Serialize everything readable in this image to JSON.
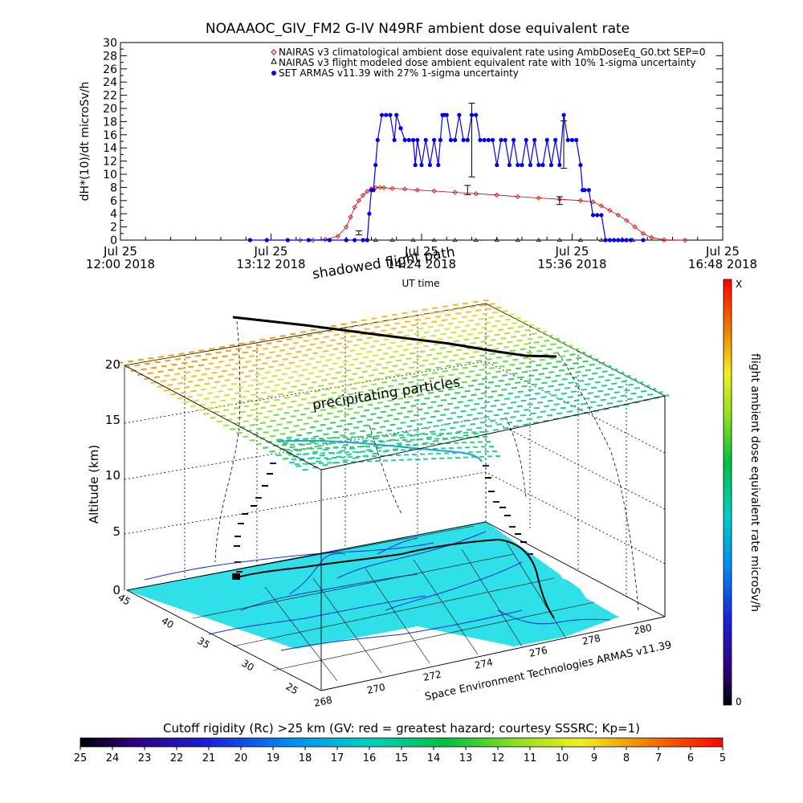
{
  "chart_data": [
    {
      "type": "line",
      "title": "NOAAAOC_GIV_FM2 G-IV    N49RF   ambient dose equivalent rate",
      "xlabel": "UT time",
      "ylabel": "dH*(10)/dt microSv/h",
      "ylim": [
        0,
        30
      ],
      "yticks": [
        "0",
        "2",
        "4",
        "6",
        "8",
        "10",
        "12",
        "14",
        "16",
        "18",
        "20",
        "22",
        "24",
        "26",
        "28",
        "30"
      ],
      "xlim_minutes": [
        720,
        1008
      ],
      "xticks": [
        {
          "line1": "Jul 25",
          "line2": "12:00 2018",
          "minute": 720
        },
        {
          "line1": "Jul 25",
          "line2": "13:12 2018",
          "minute": 792
        },
        {
          "line1": "Jul 25",
          "line2": "14:24 2018",
          "minute": 864
        },
        {
          "line1": "Jul 25",
          "line2": "15:36 2018",
          "minute": 936
        },
        {
          "line1": "Jul 25",
          "line2": "16:48 2018",
          "minute": 1008
        }
      ],
      "legend_placement": "top-right",
      "series": [
        {
          "name": "NAIRAS v3 climatological ambient dose equivalent rate using AmbDoseEq_G0.txt SEP=0",
          "color": "#cc0000",
          "marker": "diamond",
          "x": [
            806,
            812,
            818,
            824,
            828,
            830,
            832,
            834,
            836,
            838,
            840,
            842,
            844,
            846,
            850,
            856,
            862,
            870,
            880,
            890,
            900,
            910,
            920,
            930,
            940,
            946,
            950,
            954,
            958,
            962,
            966,
            970,
            974,
            980,
            990
          ],
          "y": [
            0,
            0,
            0.1,
            0.6,
            2.0,
            3.5,
            5.0,
            6.0,
            6.8,
            7.4,
            7.8,
            7.95,
            8.0,
            7.95,
            7.85,
            7.75,
            7.6,
            7.45,
            7.25,
            7.05,
            6.85,
            6.6,
            6.4,
            6.2,
            6.0,
            5.8,
            5.2,
            4.5,
            3.8,
            3.0,
            2.0,
            1.0,
            0.4,
            0.05,
            0
          ]
        },
        {
          "name": "NAIRAS v3 flight modeled dose ambient equivalent rate with 10% 1-sigma uncertainty",
          "color": "#000000",
          "marker": "triangle",
          "x": [
            842,
            850,
            860,
            870,
            880,
            890,
            900,
            910,
            920,
            930,
            940,
            950,
            960,
            965
          ],
          "y": [
            0,
            0,
            0,
            0,
            0,
            0,
            0,
            0,
            0,
            0,
            0,
            0,
            0,
            0
          ]
        },
        {
          "name": "SET ARMAS v11.39 with 27% 1-sigma uncertainty",
          "color": "#0000ee",
          "marker": "circle",
          "x": [
            782,
            790,
            800,
            810,
            820,
            828,
            832,
            836,
            838,
            839,
            840,
            841,
            842,
            843,
            845,
            847,
            849,
            851,
            852,
            854,
            856,
            858,
            860,
            861,
            862,
            864,
            866,
            868,
            870,
            872,
            873,
            874,
            875,
            876,
            878,
            880,
            882,
            884,
            886,
            888,
            890,
            892,
            894,
            896,
            898,
            900,
            902,
            904,
            906,
            908,
            910,
            912,
            914,
            916,
            918,
            920,
            922,
            924,
            926,
            928,
            930,
            932,
            934,
            936,
            938,
            940,
            941,
            942,
            944,
            946,
            948,
            950,
            952,
            954,
            956,
            958,
            960,
            962,
            964,
            970
          ],
          "y": [
            0,
            0,
            0,
            0,
            0,
            0,
            0,
            0,
            0,
            4,
            7.6,
            7.6,
            11.4,
            15.2,
            19,
            19,
            19,
            15.2,
            19,
            17,
            15.2,
            15.2,
            15.2,
            11.4,
            15.2,
            11.4,
            15.2,
            11.4,
            15.2,
            11.4,
            15.2,
            19,
            19,
            19,
            15.2,
            15.2,
            19,
            15.2,
            15.2,
            19,
            19,
            15.2,
            15.2,
            15.2,
            15.2,
            11.4,
            15.2,
            15.2,
            11.4,
            15.2,
            11.4,
            11.4,
            15.2,
            11.4,
            15.2,
            11.4,
            11.4,
            15.2,
            11.4,
            15.2,
            11.4,
            19,
            15.2,
            15.2,
            15.2,
            11.4,
            7.6,
            7.6,
            7.6,
            3.8,
            3.8,
            3.8,
            0,
            0,
            0,
            0,
            0,
            0,
            0,
            0
          ]
        }
      ],
      "error_bars": [
        {
          "x": 834,
          "y": 1.1,
          "err": 0.3
        },
        {
          "x": 886,
          "y": 7.6,
          "err": 0.7
        },
        {
          "x": 888,
          "y": 15.2,
          "err": 5.6
        },
        {
          "x": 930,
          "y": 6.0,
          "err": 0.6
        },
        {
          "x": 932,
          "y": 14.5,
          "err": 3.6
        }
      ]
    },
    {
      "type": "scatter",
      "title": "",
      "zlabel": "Altitude (km)",
      "zticks": [
        "0",
        "5",
        "10",
        "15",
        "20"
      ],
      "lat_ticks": [
        "45",
        "40",
        "35",
        "30",
        "25"
      ],
      "lon_ticks": [
        "268",
        "270",
        "272",
        "274",
        "276",
        "278",
        "280"
      ],
      "annotations": {
        "shadow": "shadowed flight path",
        "particles": "precipitating particles",
        "credit": "Space Environment Technologies ARMAS v11.39"
      },
      "colorbar_right": {
        "label": "flight ambient dose equivalent rate microSv/h",
        "top": "X",
        "bottom": "0"
      },
      "colorbar_bottom": {
        "label": "Cutoff rigidity (Rc) >25 km (GV: red = greatest hazard; courtesy SSSRC; Kp=1)",
        "ticks": [
          "25",
          "24",
          "23",
          "22",
          "21",
          "20",
          "19",
          "18",
          "17",
          "16",
          "15",
          "14",
          "13",
          "12",
          "11",
          "10",
          "9",
          "8",
          "7",
          "6",
          "5"
        ]
      }
    }
  ]
}
